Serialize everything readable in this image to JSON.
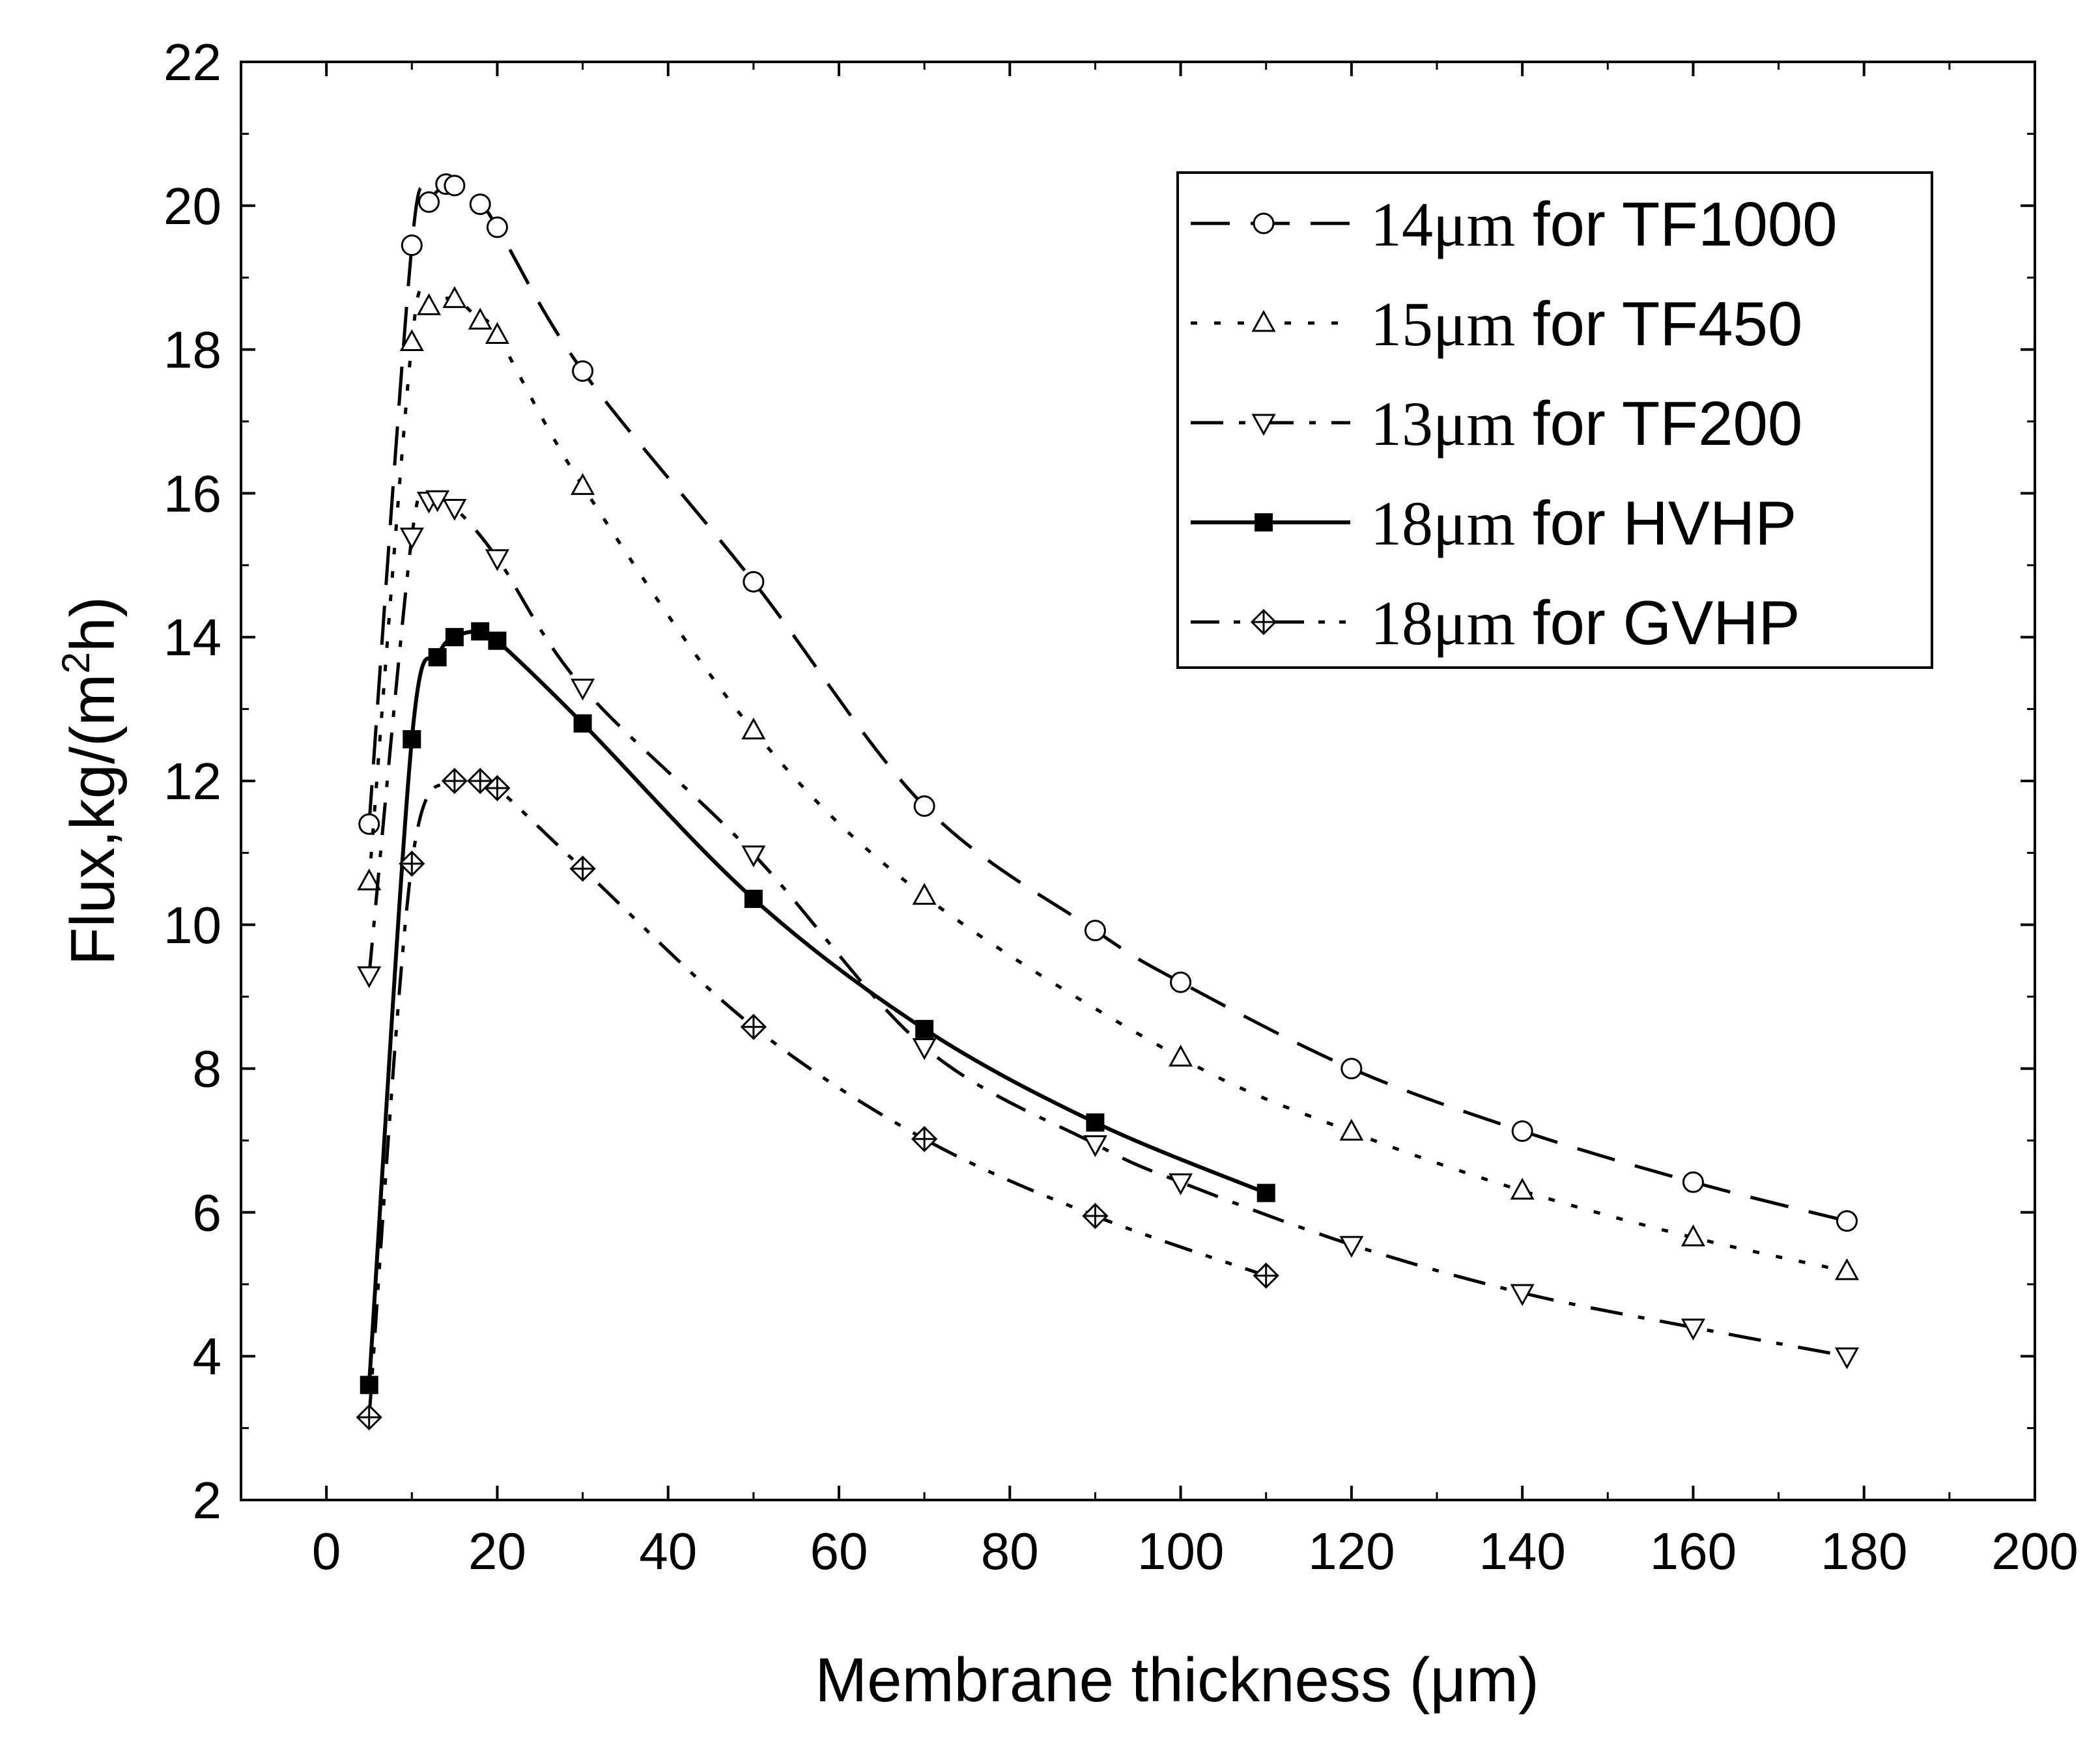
{
  "chart_data": {
    "type": "line",
    "xlabel": "Membrane thickness (μm)",
    "ylabel": "Flux,kg/(m",
    "ylabel_sup": "2",
    "ylabel_tail": "h)",
    "xlim": [
      -10,
      200
    ],
    "ylim": [
      2,
      22
    ],
    "xticks": [
      0,
      20,
      40,
      60,
      80,
      100,
      120,
      140,
      160,
      180,
      200
    ],
    "yticks": [
      2,
      4,
      6,
      8,
      10,
      12,
      14,
      16,
      18,
      20,
      22
    ],
    "grid": false,
    "legend_position": "top-right",
    "series": [
      {
        "name": "14μm for TF1000",
        "legend_num": "14μm",
        "legend_rest": " for TF1000",
        "marker": "circle-open",
        "line_style": "dash",
        "x": [
          5,
          10,
          12,
          14,
          15,
          18,
          20,
          30,
          50,
          70,
          90,
          100,
          120,
          140,
          160,
          178
        ],
        "y": [
          11.4,
          19.45,
          20.05,
          20.3,
          20.28,
          20.02,
          19.7,
          17.7,
          14.77,
          11.65,
          9.92,
          9.2,
          8.0,
          7.13,
          6.42,
          5.88
        ]
      },
      {
        "name": "15μm for TF450",
        "legend_num": "15μm",
        "legend_rest": " for TF450",
        "marker": "triangle-up-open",
        "line_style": "dot",
        "x": [
          5,
          10,
          12,
          15,
          18,
          20,
          30,
          50,
          70,
          100,
          120,
          140,
          160,
          178
        ],
        "y": [
          10.6,
          18.1,
          18.6,
          18.7,
          18.4,
          18.2,
          16.1,
          12.7,
          10.4,
          8.15,
          7.12,
          6.3,
          5.65,
          5.18
        ]
      },
      {
        "name": "13μm for TF200",
        "legend_num": "13μm",
        "legend_rest": " for TF200",
        "marker": "triangle-down-open",
        "line_style": "dashdot",
        "x": [
          5,
          10,
          12,
          13,
          15,
          20,
          30,
          50,
          70,
          90,
          100,
          120,
          140,
          160,
          178
        ],
        "y": [
          9.3,
          15.4,
          15.9,
          15.92,
          15.8,
          15.1,
          13.3,
          10.98,
          8.3,
          6.95,
          6.42,
          5.55,
          4.88,
          4.4,
          4.0
        ]
      },
      {
        "name": "18μm for HVHP",
        "legend_num": "18μm",
        "legend_rest": " for HVHP",
        "marker": "square-filled",
        "line_style": "solid",
        "x": [
          5,
          10,
          13,
          15,
          18,
          20,
          30,
          50,
          70,
          90,
          110
        ],
        "y": [
          3.6,
          12.58,
          13.72,
          14.0,
          14.08,
          13.95,
          12.8,
          10.36,
          8.55,
          7.25,
          6.27
        ]
      },
      {
        "name": "18μm for GVHP",
        "legend_num": "18μm",
        "legend_rest": " for GVHP",
        "marker": "diamond-cross",
        "line_style": "dashdotdot",
        "x": [
          5,
          10,
          15,
          18,
          20,
          30,
          50,
          70,
          90,
          110
        ],
        "y": [
          3.15,
          10.85,
          12.0,
          12.0,
          11.9,
          10.78,
          8.58,
          7.02,
          5.95,
          5.12
        ]
      }
    ]
  }
}
